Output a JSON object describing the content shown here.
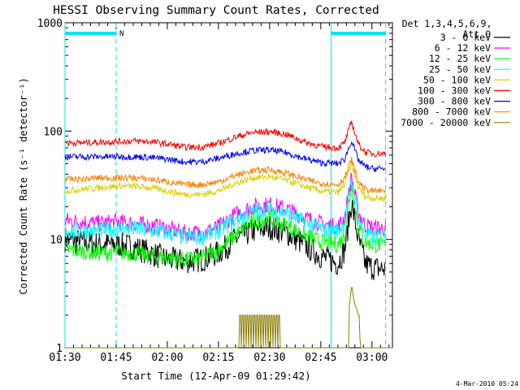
{
  "chart_data": {
    "type": "line",
    "title": "HESSI Observing Summary Count Rates, Corrected",
    "xlabel": "Start Time (12-Apr-09 01:29:42)",
    "ylabel": "Corrected Count Rate (s⁻¹ detector⁻¹)",
    "y_scale": "log",
    "ylim": [
      1,
      1000
    ],
    "xlim_minutes_of_day": [
      90,
      186
    ],
    "x_ticks": [
      "01:30",
      "01:45",
      "02:00",
      "02:15",
      "02:30",
      "02:45",
      "03:00"
    ],
    "x_tick_minutes": [
      90,
      105,
      120,
      135,
      150,
      165,
      180
    ],
    "y_ticks": [
      "1",
      "10",
      "100",
      "1000"
    ],
    "y_tick_values": [
      1,
      10,
      100,
      1000
    ],
    "legend_header": [
      "Det 1,3,4,5,6,9,",
      "Att 0"
    ],
    "legend_position": "top-right outside",
    "timestamp": "4-Mar-2010 05:24",
    "night_flag_label": "N",
    "markers": {
      "cyan_solid_minutes": [
        90,
        168
      ],
      "cyan_dashed_minutes": [
        105,
        184
      ],
      "night_bars_minutes": [
        [
          90,
          105
        ],
        [
          168,
          184
        ]
      ],
      "color": "#00e5ee"
    },
    "series": [
      {
        "name": "3 - 6 keV",
        "color": "#000000",
        "x": [
          90,
          95,
          100,
          105,
          110,
          115,
          120,
          125,
          130,
          135,
          140,
          145,
          150,
          155,
          160,
          165,
          170,
          172,
          174,
          176,
          178,
          180,
          184
        ],
        "values": [
          10,
          9.5,
          9,
          9,
          8.5,
          7.5,
          6.5,
          6.3,
          6.5,
          7.5,
          10,
          12,
          13,
          11.5,
          9,
          7,
          6,
          8,
          22,
          10,
          6,
          5.5,
          5.3
        ]
      },
      {
        "name": "6 - 12 keV",
        "color": "#ff00ff",
        "x": [
          90,
          95,
          100,
          105,
          110,
          115,
          120,
          125,
          130,
          135,
          140,
          145,
          150,
          155,
          160,
          165,
          170,
          172,
          174,
          176,
          178,
          180,
          184
        ],
        "values": [
          15,
          14.5,
          14,
          14.5,
          14,
          13.5,
          12.5,
          11.5,
          11.5,
          13,
          17,
          20,
          21,
          19,
          16,
          14,
          13,
          16,
          38,
          18,
          13.5,
          13,
          12.5
        ]
      },
      {
        "name": "12 - 25 keV",
        "color": "#00ff00",
        "x": [
          90,
          95,
          100,
          105,
          110,
          115,
          120,
          125,
          130,
          135,
          140,
          145,
          150,
          155,
          160,
          165,
          170,
          172,
          174,
          176,
          178,
          180,
          184
        ],
        "values": [
          8,
          7.8,
          7.5,
          7.6,
          7.5,
          7,
          6.8,
          6.5,
          6.7,
          8,
          11,
          14.5,
          15.5,
          13.5,
          11,
          9.5,
          9,
          11,
          33,
          13,
          9.5,
          9,
          8.8
        ]
      },
      {
        "name": "25 - 50 keV",
        "color": "#00ffff",
        "x": [
          90,
          95,
          100,
          105,
          110,
          115,
          120,
          125,
          130,
          135,
          140,
          145,
          150,
          155,
          160,
          165,
          170,
          172,
          174,
          176,
          178,
          180,
          184
        ],
        "values": [
          12,
          12,
          12,
          12.5,
          12.5,
          12,
          11.5,
          10.5,
          10.5,
          12,
          15,
          18,
          19,
          17.5,
          14.5,
          12.5,
          12,
          14,
          36,
          16,
          11,
          10.5,
          10.5
        ]
      },
      {
        "name": "50 - 100 keV",
        "color": "#dcd000",
        "x": [
          90,
          95,
          100,
          105,
          110,
          115,
          120,
          125,
          130,
          135,
          140,
          145,
          150,
          155,
          160,
          165,
          170,
          172,
          174,
          176,
          178,
          180,
          184
        ],
        "values": [
          28,
          29,
          30,
          31,
          31,
          30,
          28,
          26,
          26,
          28,
          33,
          37,
          38,
          35,
          31,
          28,
          27,
          32,
          50,
          30,
          25,
          24,
          24
        ]
      },
      {
        "name": "100 - 300 keV",
        "color": "#ff0000",
        "x": [
          90,
          95,
          100,
          105,
          110,
          115,
          120,
          125,
          130,
          135,
          140,
          145,
          150,
          155,
          160,
          165,
          170,
          172,
          174,
          176,
          178,
          180,
          184
        ],
        "values": [
          78,
          78,
          79,
          80,
          81,
          80,
          76,
          71,
          71,
          77,
          88,
          97,
          99,
          93,
          80,
          72,
          70,
          78,
          122,
          76,
          64,
          62,
          62
        ]
      },
      {
        "name": "300 - 800 keV",
        "color": "#0000ff",
        "x": [
          90,
          95,
          100,
          105,
          110,
          115,
          120,
          125,
          130,
          135,
          140,
          145,
          150,
          155,
          160,
          165,
          170,
          172,
          174,
          176,
          178,
          180,
          184
        ],
        "values": [
          58,
          58,
          58,
          58,
          58,
          57,
          55,
          52,
          52,
          56,
          62,
          66,
          67,
          63,
          56,
          51,
          50,
          55,
          82,
          54,
          47,
          45,
          45
        ]
      },
      {
        "name": "800 - 7000 keV",
        "color": "#ff8000",
        "x": [
          90,
          95,
          100,
          105,
          110,
          115,
          120,
          125,
          130,
          135,
          140,
          145,
          150,
          155,
          160,
          165,
          170,
          172,
          174,
          176,
          178,
          180,
          184
        ],
        "values": [
          36,
          36,
          37,
          37,
          37,
          36,
          34,
          32,
          32,
          34,
          39,
          43,
          44,
          41,
          36,
          33,
          32,
          37,
          55,
          34,
          29,
          28,
          28
        ]
      },
      {
        "name": "7000 - 20000 keV",
        "color": "#8b7d00",
        "x": [
          90,
          140.9,
          141,
          152.8,
          152.9,
          173.2,
          173.3,
          173.7,
          174,
          174.5,
          175,
          175.5,
          176,
          176.4,
          176.5,
          186
        ],
        "values": [
          1,
          1,
          2,
          2,
          1,
          1,
          2.3,
          3,
          3.8,
          3,
          2.5,
          2.3,
          2,
          2,
          1,
          1
        ]
      }
    ]
  }
}
